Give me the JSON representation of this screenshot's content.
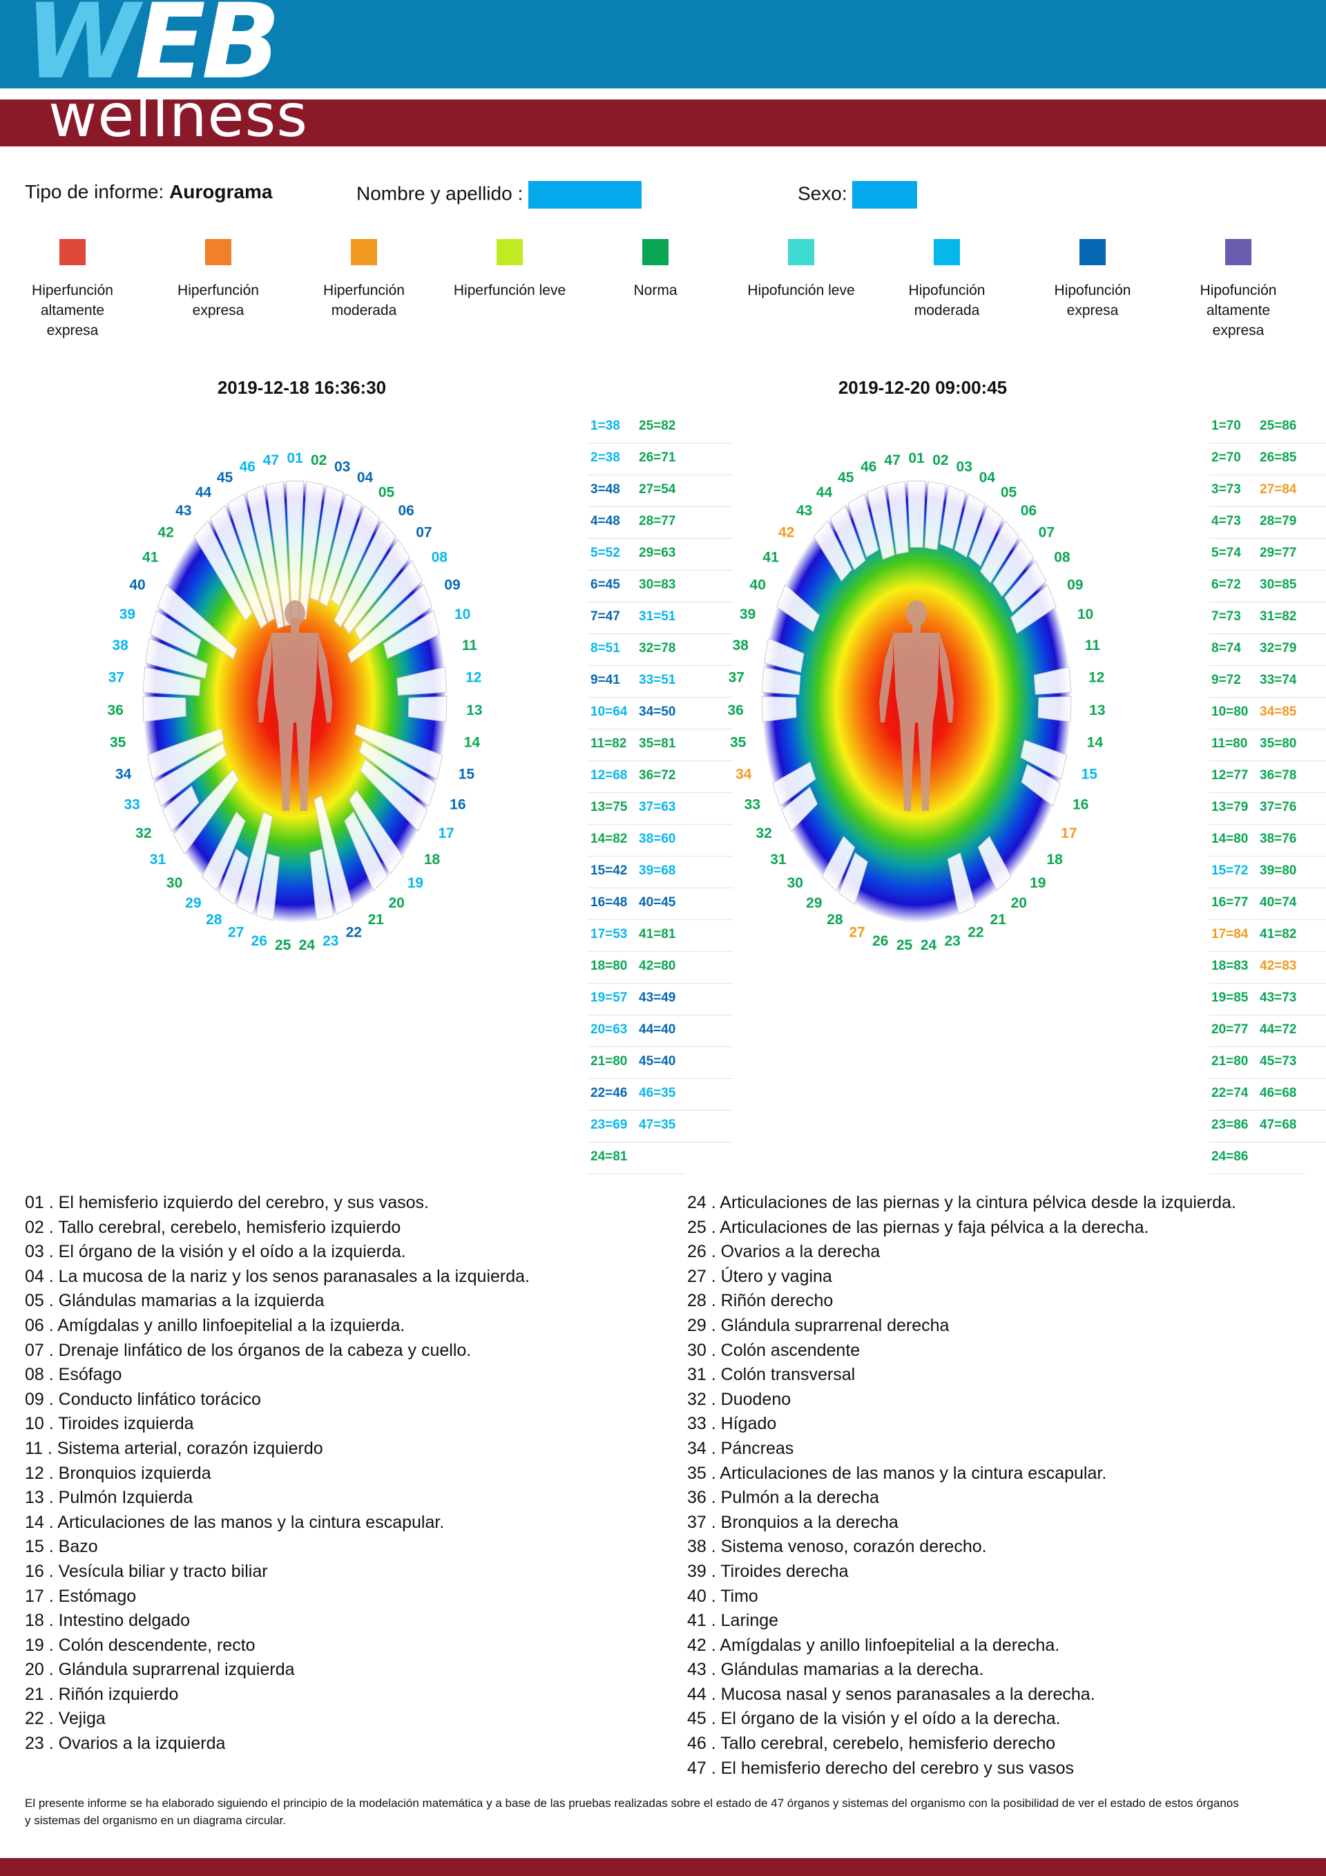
{
  "header": {
    "logo_top": "WEB",
    "logo_bottom": "wellness"
  },
  "info": {
    "report_label": "Tipo de informe:",
    "report_value": "Aurograma",
    "name_label": "Nombre y apellido :",
    "sex_label": "Sexo:"
  },
  "legend": [
    {
      "label": "Hiperfunción altamente expresa",
      "color": "#e0473b"
    },
    {
      "label": "Hiperfunción expresa",
      "color": "#f2802a"
    },
    {
      "label": "Hiperfunción moderada",
      "color": "#f29a22"
    },
    {
      "label": "Hiperfunción leve",
      "color": "#c2ea22"
    },
    {
      "label": "Norma",
      "color": "#0aa653"
    },
    {
      "label": "Hipofunción leve",
      "color": "#3fd9cf"
    },
    {
      "label": "Hipofunción moderada",
      "color": "#06b7ec"
    },
    {
      "label": "Hipofunción expresa",
      "color": "#0668b3"
    },
    {
      "label": "Hipofunción altamente expresa",
      "color": "#6a5cae"
    }
  ],
  "charts": [
    {
      "date": "2019-12-18 16:36:30",
      "colors": [
        "c",
        "n",
        "d",
        "d",
        "n",
        "d",
        "d",
        "c",
        "d",
        "c",
        "n",
        "c",
        "n",
        "n",
        "d",
        "d",
        "c",
        "n",
        "c",
        "n",
        "n",
        "d",
        "c",
        "n",
        "n",
        "c",
        "c",
        "c",
        "c",
        "n",
        "c",
        "n",
        "c",
        "d",
        "n",
        "n",
        "c",
        "c",
        "c",
        "d",
        "n",
        "n",
        "d",
        "d",
        "d",
        "c",
        "c"
      ],
      "values": [
        "1=38",
        "2=38",
        "3=48",
        "4=48",
        "5=52",
        "6=45",
        "7=47",
        "8=51",
        "9=41",
        "10=64",
        "11=82",
        "12=68",
        "13=75",
        "14=82",
        "15=42",
        "16=48",
        "17=53",
        "18=80",
        "19=57",
        "20=63",
        "21=80",
        "22=46",
        "23=69",
        "24=81",
        "25=82",
        "26=71",
        "27=54",
        "28=77",
        "29=63",
        "30=83",
        "31=51",
        "32=78",
        "33=51",
        "34=50",
        "35=81",
        "36=72",
        "37=63",
        "38=60",
        "39=68",
        "40=45",
        "41=81",
        "42=80",
        "43=49",
        "44=40",
        "45=40",
        "46=35",
        "47=35"
      ],
      "value_colors": [
        "c",
        "c",
        "d",
        "d",
        "c",
        "d",
        "d",
        "c",
        "d",
        "c",
        "n",
        "c",
        "n",
        "n",
        "d",
        "d",
        "c",
        "n",
        "c",
        "c",
        "n",
        "d",
        "c",
        "n",
        "n",
        "n",
        "n",
        "n",
        "n",
        "n",
        "c",
        "n",
        "c",
        "d",
        "n",
        "n",
        "c",
        "c",
        "c",
        "d",
        "n",
        "n",
        "d",
        "d",
        "d",
        "c",
        "c"
      ]
    },
    {
      "date": "2019-12-20 09:00:45",
      "colors": [
        "n",
        "n",
        "n",
        "n",
        "n",
        "n",
        "n",
        "n",
        "n",
        "n",
        "n",
        "n",
        "n",
        "n",
        "c",
        "n",
        "o",
        "n",
        "n",
        "n",
        "n",
        "n",
        "n",
        "n",
        "n",
        "n",
        "o",
        "n",
        "n",
        "n",
        "n",
        "n",
        "n",
        "o",
        "n",
        "n",
        "n",
        "n",
        "n",
        "n",
        "n",
        "o",
        "n",
        "n",
        "n",
        "n",
        "n"
      ],
      "values": [
        "1=70",
        "2=70",
        "3=73",
        "4=73",
        "5=74",
        "6=72",
        "7=73",
        "8=74",
        "9=72",
        "10=80",
        "11=80",
        "12=77",
        "13=79",
        "14=80",
        "15=72",
        "16=77",
        "17=84",
        "18=83",
        "19=85",
        "20=77",
        "21=80",
        "22=74",
        "23=86",
        "24=86",
        "25=86",
        "26=85",
        "27=84",
        "28=79",
        "29=77",
        "30=85",
        "31=82",
        "32=79",
        "33=74",
        "34=85",
        "35=80",
        "36=78",
        "37=76",
        "38=76",
        "39=80",
        "40=74",
        "41=82",
        "42=83",
        "43=73",
        "44=72",
        "45=73",
        "46=68",
        "47=68"
      ],
      "value_colors": [
        "n",
        "n",
        "n",
        "n",
        "n",
        "n",
        "n",
        "n",
        "n",
        "n",
        "n",
        "n",
        "n",
        "n",
        "c",
        "n",
        "o",
        "n",
        "n",
        "n",
        "n",
        "n",
        "n",
        "n",
        "n",
        "n",
        "o",
        "n",
        "n",
        "n",
        "n",
        "n",
        "n",
        "o",
        "n",
        "n",
        "n",
        "n",
        "n",
        "n",
        "n",
        "o",
        "n",
        "n",
        "n",
        "n",
        "n"
      ]
    }
  ],
  "descriptions": [
    "01 . El hemisferio izquierdo del cerebro, y sus vasos.",
    "02 . Tallo cerebral, cerebelo, hemisferio izquierdo",
    "03 . El órgano de la visión y el oído a la izquierda.",
    "04 . La mucosa de la nariz y los senos paranasales a la izquierda.",
    "05 . Glándulas mamarias a la izquierda",
    "06 . Amígdalas y anillo linfoepitelial a la izquierda.",
    "07 . Drenaje linfático de los órganos de la cabeza y cuello.",
    "08 . Esófago",
    "09 . Conducto linfático torácico",
    "10 . Tiroides izquierda",
    "11 . Sistema arterial, corazón izquierdo",
    "12 . Bronquios izquierda",
    "13 . Pulmón Izquierda",
    "14 . Articulaciones de las manos y la cintura escapular.",
    "15 . Bazo",
    "16 . Vesícula biliar y tracto biliar",
    "17 . Estómago",
    "18 . Intestino delgado",
    "19 . Colón descendente, recto",
    "20 . Glándula suprarrenal izquierda",
    "21 . Riñón izquierdo",
    "22 . Vejiga",
    "23 . Ovarios a la izquierda",
    "24 . Articulaciones de las piernas y la cintura pélvica desde la izquierda.",
    "25 . Articulaciones de las piernas y faja pélvica a la derecha.",
    "26 . Ovarios a la derecha",
    "27 . Útero y vagina",
    "28 . Riñón derecho",
    "29 . Glándula suprarrenal derecha",
    "30 . Colón ascendente",
    "31 . Colón transversal",
    "32 . Duodeno",
    "33 . Hígado",
    "34 . Páncreas",
    "35 . Articulaciones de las manos y la cintura escapular.",
    "36 . Pulmón a la derecha",
    "37 . Bronquios a la derecha",
    "38 . Sistema venoso, corazón derecho.",
    "39 . Tiroides derecha",
    "40 . Timo",
    "41 . Laringe",
    "42 . Amígdalas y anillo linfoepitelial a la derecha.",
    "43 . Glándulas mamarias a la derecha.",
    "44 . Mucosa nasal y senos paranasales a la derecha.",
    "45 . El órgano de la visión y el oído a la derecha.",
    "46 . Tallo cerebral, cerebelo, hemisferio derecho",
    "47 . El hemisferio derecho del cerebro y sus vasos"
  ],
  "footer_note": "El presente informe se ha elaborado siguiendo el principio de la modelación matemática y a base de las pruebas realizadas sobre el estado de 47 órganos y sistemas del organismo con la posibilidad de ver el estado de estos órganos y sistemas del organismo en un diagrama circular.",
  "color_codes": {
    "n": "#0aa653",
    "c": "#06b7ec",
    "d": "#0668b3",
    "o": "#f29a22"
  }
}
